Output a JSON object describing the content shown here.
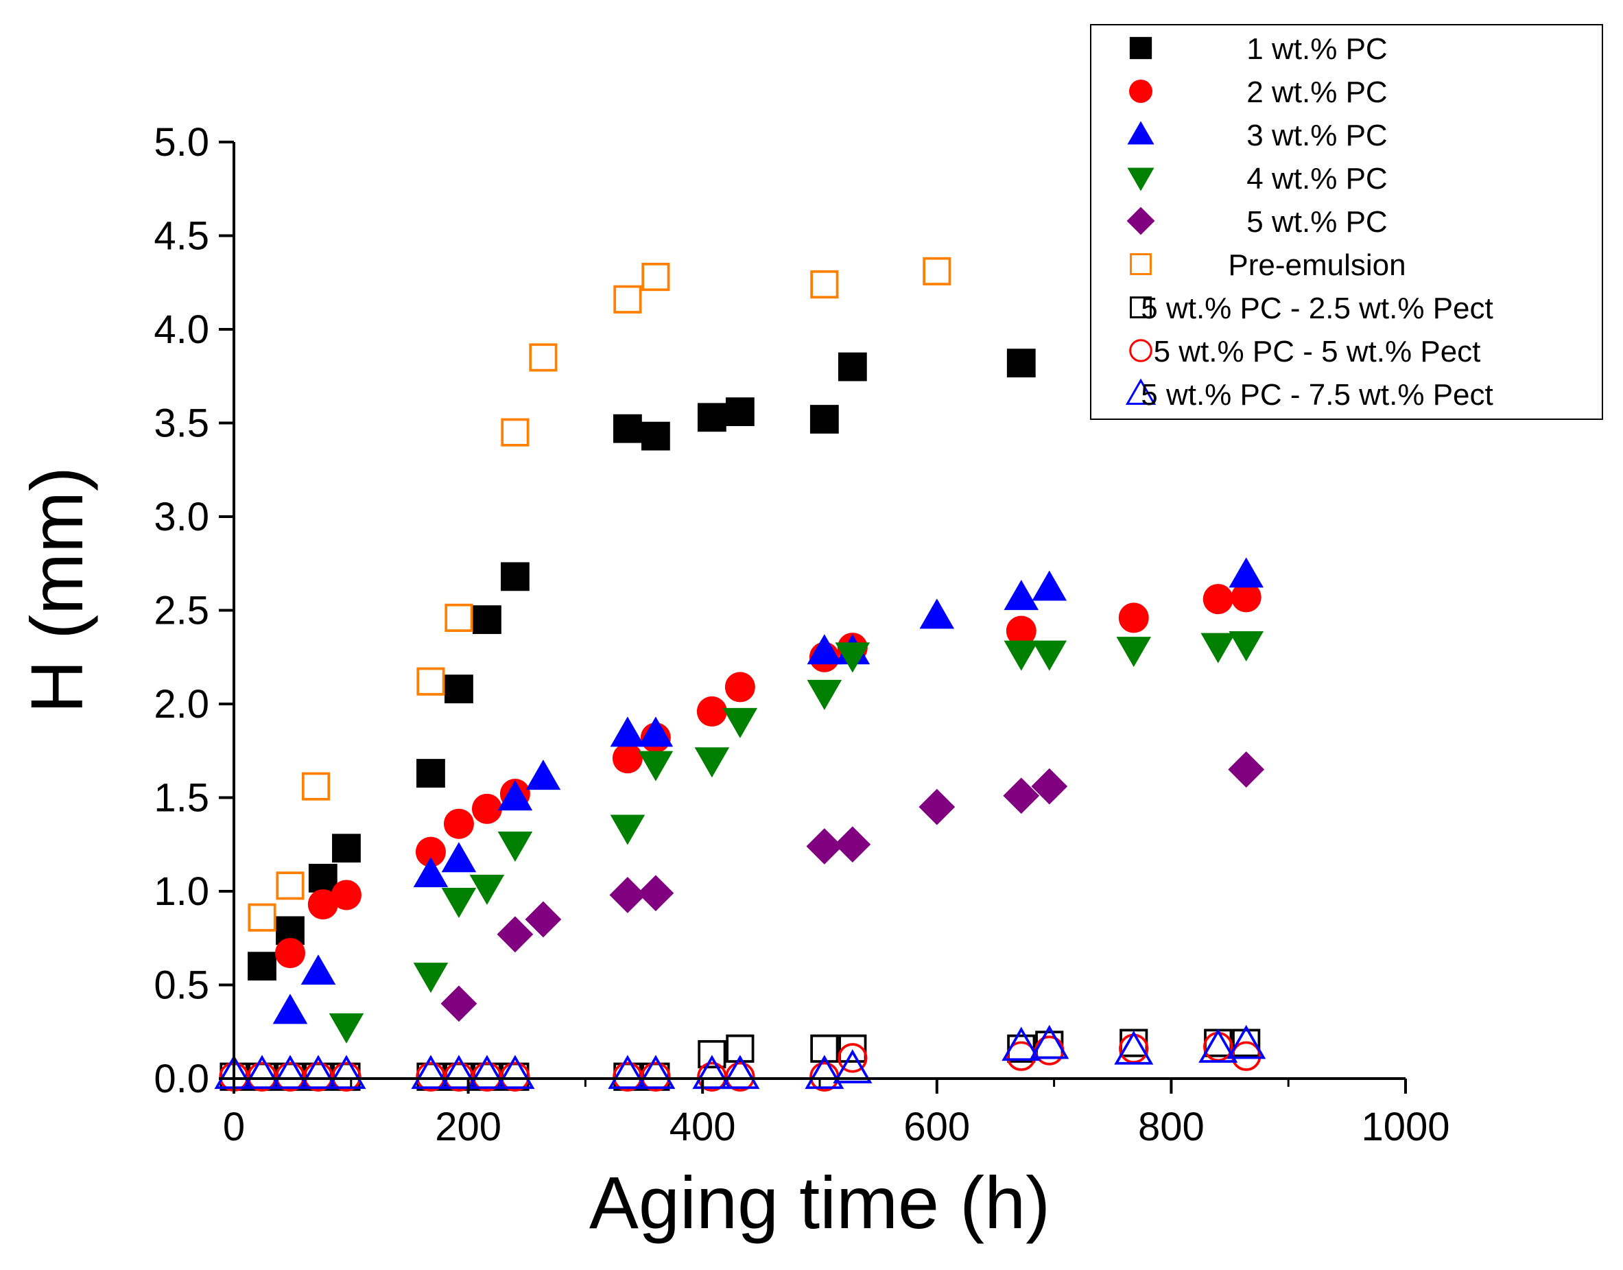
{
  "chart_data": {
    "type": "scatter",
    "title": "",
    "xlabel": "Aging time (h)",
    "ylabel": "H (mm)",
    "xlim": [
      0,
      1000
    ],
    "ylim": [
      0,
      5
    ],
    "xticks": [
      "0",
      "200",
      "400",
      "600",
      "800",
      "1000"
    ],
    "yticks": [
      "0.0",
      "0.5",
      "1.0",
      "1.5",
      "2.0",
      "2.5",
      "3.0",
      "3.5",
      "4.0",
      "4.5",
      "5.0"
    ],
    "grid": false,
    "legend_position": "top-right",
    "series": [
      {
        "name": "1 wt.% PC",
        "marker": "square",
        "filled": true,
        "color": "#000000",
        "points": [
          [
            24,
            0.6
          ],
          [
            48,
            0.79
          ],
          [
            76,
            1.07
          ],
          [
            96,
            1.23
          ],
          [
            168,
            1.63
          ],
          [
            192,
            2.08
          ],
          [
            216,
            2.45
          ],
          [
            240,
            2.68
          ],
          [
            336,
            3.47
          ],
          [
            360,
            3.43
          ],
          [
            408,
            3.53
          ],
          [
            432,
            3.56
          ],
          [
            504,
            3.52
          ],
          [
            528,
            3.8
          ],
          [
            672,
            3.82
          ]
        ]
      },
      {
        "name": "2 wt.% PC",
        "marker": "circle",
        "filled": true,
        "color": "#ff0000",
        "points": [
          [
            48,
            0.67
          ],
          [
            76,
            0.93
          ],
          [
            96,
            0.98
          ],
          [
            168,
            1.21
          ],
          [
            192,
            1.36
          ],
          [
            216,
            1.44
          ],
          [
            240,
            1.52
          ],
          [
            336,
            1.71
          ],
          [
            360,
            1.82
          ],
          [
            408,
            1.96
          ],
          [
            432,
            2.09
          ],
          [
            504,
            2.25
          ],
          [
            528,
            2.3
          ],
          [
            672,
            2.39
          ],
          [
            768,
            2.46
          ],
          [
            840,
            2.56
          ],
          [
            864,
            2.57
          ]
        ]
      },
      {
        "name": "3 wt.% PC",
        "marker": "triangle-up",
        "filled": true,
        "color": "#0000ff",
        "points": [
          [
            48,
            0.36
          ],
          [
            72,
            0.57
          ],
          [
            168,
            1.09
          ],
          [
            192,
            1.17
          ],
          [
            240,
            1.5
          ],
          [
            264,
            1.61
          ],
          [
            336,
            1.84
          ],
          [
            360,
            1.84
          ],
          [
            504,
            2.28
          ],
          [
            528,
            2.28
          ],
          [
            600,
            2.47
          ],
          [
            672,
            2.57
          ],
          [
            696,
            2.62
          ],
          [
            864,
            2.69
          ]
        ]
      },
      {
        "name": "4 wt.% PC",
        "marker": "triangle-down",
        "filled": true,
        "color": "#008000",
        "points": [
          [
            96,
            0.28
          ],
          [
            168,
            0.55
          ],
          [
            192,
            0.95
          ],
          [
            216,
            1.02
          ],
          [
            240,
            1.25
          ],
          [
            336,
            1.34
          ],
          [
            360,
            1.68
          ],
          [
            408,
            1.7
          ],
          [
            432,
            1.91
          ],
          [
            504,
            2.06
          ],
          [
            528,
            2.26
          ],
          [
            672,
            2.27
          ],
          [
            696,
            2.27
          ],
          [
            768,
            2.29
          ],
          [
            840,
            2.31
          ],
          [
            864,
            2.32
          ]
        ]
      },
      {
        "name": "5 wt.% PC",
        "marker": "diamond",
        "filled": true,
        "color": "#800080",
        "points": [
          [
            192,
            0.4
          ],
          [
            240,
            0.77
          ],
          [
            264,
            0.85
          ],
          [
            336,
            0.98
          ],
          [
            360,
            0.99
          ],
          [
            504,
            1.24
          ],
          [
            528,
            1.25
          ],
          [
            600,
            1.45
          ],
          [
            672,
            1.51
          ],
          [
            696,
            1.56
          ],
          [
            864,
            1.65
          ]
        ]
      },
      {
        "name": "Pre-emulsion",
        "marker": "square",
        "filled": false,
        "color": "#ff8000",
        "points": [
          [
            24,
            0.86
          ],
          [
            48,
            1.03
          ],
          [
            70,
            1.56
          ],
          [
            168,
            2.12
          ],
          [
            192,
            2.46
          ],
          [
            240,
            3.45
          ],
          [
            264,
            3.85
          ],
          [
            336,
            4.16
          ],
          [
            360,
            4.28
          ],
          [
            504,
            4.24
          ],
          [
            600,
            4.31
          ]
        ]
      },
      {
        "name": "5 wt.% PC - 2.5 wt.% Pect",
        "marker": "square",
        "filled": false,
        "color": "#000000",
        "points": [
          [
            0,
            0.01
          ],
          [
            24,
            0.01
          ],
          [
            48,
            0.01
          ],
          [
            72,
            0.01
          ],
          [
            96,
            0.01
          ],
          [
            168,
            0.01
          ],
          [
            192,
            0.01
          ],
          [
            216,
            0.01
          ],
          [
            240,
            0.01
          ],
          [
            336,
            0.01
          ],
          [
            360,
            0.01
          ],
          [
            408,
            0.13
          ],
          [
            432,
            0.16
          ],
          [
            504,
            0.16
          ],
          [
            528,
            0.16
          ],
          [
            672,
            0.16
          ],
          [
            696,
            0.18
          ],
          [
            768,
            0.19
          ],
          [
            840,
            0.19
          ],
          [
            864,
            0.19
          ]
        ]
      },
      {
        "name": "5 wt.% PC - 5 wt.% Pect",
        "marker": "circle",
        "filled": false,
        "color": "#ff0000",
        "points": [
          [
            0,
            0.01
          ],
          [
            24,
            0.01
          ],
          [
            48,
            0.01
          ],
          [
            72,
            0.01
          ],
          [
            96,
            0.01
          ],
          [
            168,
            0.01
          ],
          [
            192,
            0.01
          ],
          [
            216,
            0.01
          ],
          [
            240,
            0.01
          ],
          [
            336,
            0.01
          ],
          [
            360,
            0.01
          ],
          [
            408,
            0.01
          ],
          [
            432,
            0.01
          ],
          [
            504,
            0.01
          ],
          [
            528,
            0.11
          ],
          [
            672,
            0.12
          ],
          [
            696,
            0.15
          ],
          [
            768,
            0.16
          ],
          [
            840,
            0.17
          ],
          [
            864,
            0.12
          ]
        ]
      },
      {
        "name": "5 wt.% PC - 7.5 wt.% Pect",
        "marker": "triangle-up",
        "filled": false,
        "color": "#0000ff",
        "points": [
          [
            0,
            0.02
          ],
          [
            24,
            0.02
          ],
          [
            48,
            0.02
          ],
          [
            72,
            0.02
          ],
          [
            96,
            0.02
          ],
          [
            168,
            0.02
          ],
          [
            192,
            0.02
          ],
          [
            216,
            0.02
          ],
          [
            240,
            0.02
          ],
          [
            336,
            0.02
          ],
          [
            360,
            0.02
          ],
          [
            408,
            0.02
          ],
          [
            432,
            0.02
          ],
          [
            504,
            0.02
          ],
          [
            528,
            0.05
          ],
          [
            672,
            0.17
          ],
          [
            696,
            0.18
          ],
          [
            768,
            0.15
          ],
          [
            840,
            0.16
          ],
          [
            864,
            0.18
          ]
        ]
      }
    ]
  }
}
